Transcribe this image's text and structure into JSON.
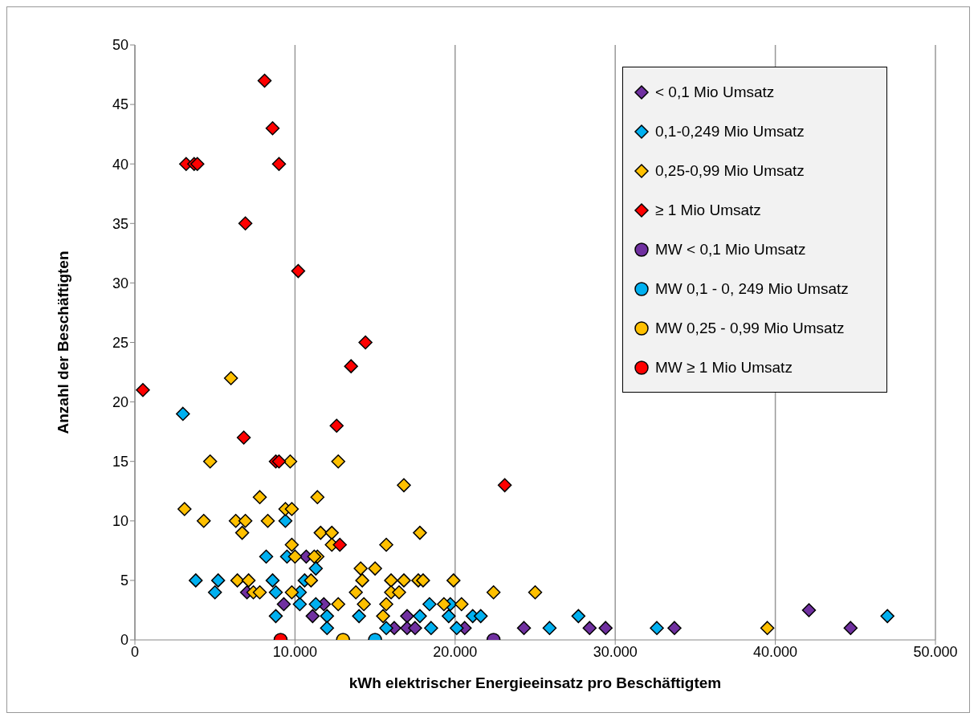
{
  "chart_data": {
    "type": "scatter",
    "xlabel": "kWh elektrischer Energieeinsatz pro Beschäftigtem",
    "ylabel": "Anzahl der Beschäftigten",
    "xlim": [
      0,
      50000
    ],
    "xticks": [
      {
        "value": 0,
        "label": "0"
      },
      {
        "value": 10000,
        "label": "10.000"
      },
      {
        "value": 20000,
        "label": "20.000"
      },
      {
        "value": 30000,
        "label": "30.000"
      },
      {
        "value": 40000,
        "label": "40.000"
      },
      {
        "value": 50000,
        "label": "50.000"
      }
    ],
    "ylim": [
      0,
      50
    ],
    "yticks": [
      0,
      5,
      10,
      15,
      20,
      25,
      30,
      35,
      40,
      45,
      50
    ],
    "grid": "x",
    "legend": "top right",
    "series": [
      {
        "name": "< 0,1 Mio Umsatz",
        "color": "#7030a0",
        "marker": "diamond",
        "x": [
          7000,
          9300,
          10700,
          11100,
          11800,
          16200,
          17000,
          17000,
          17500,
          20600,
          24300,
          28400,
          29400,
          33700,
          42100,
          44700
        ],
        "values": [
          4,
          3,
          7,
          2,
          3,
          1,
          2,
          1,
          1,
          1,
          1,
          1,
          1,
          1,
          2.5,
          1
        ]
      },
      {
        "name": "0,1-0,249 Mio Umsatz",
        "color": "#00b0f0",
        "marker": "diamond",
        "x": [
          3000,
          3800,
          5200,
          5000,
          8200,
          9400,
          8600,
          8800,
          8800,
          9500,
          10300,
          10300,
          10600,
          11300,
          11300,
          12000,
          12000,
          14000,
          15700,
          17800,
          18400,
          18500,
          19600,
          19700,
          20100,
          21100,
          21600,
          25900,
          27700,
          32600,
          47000
        ],
        "values": [
          19,
          5,
          5,
          4,
          7,
          10,
          5,
          4,
          2,
          7,
          3,
          4,
          5,
          6,
          3,
          2,
          1,
          2,
          1,
          2,
          3,
          1,
          2,
          3,
          1,
          2,
          2,
          1,
          2,
          1,
          2
        ]
      },
      {
        "name": "0,25-0,99 Mio Umsatz",
        "color": "#ffc000",
        "marker": "diamond",
        "x": [
          6000,
          4700,
          9700,
          12700,
          7800,
          11400,
          3100,
          9400,
          9800,
          4300,
          6300,
          6900,
          8300,
          6700,
          11600,
          12300,
          12300,
          9800,
          10000,
          11400,
          11200,
          6400,
          7100,
          11000,
          7400,
          7800,
          9800,
          12700,
          14100,
          14200,
          13800,
          14300,
          16800,
          17800,
          15700,
          15000,
          16000,
          16800,
          17700,
          18000,
          19900,
          16000,
          16500,
          22400,
          25000,
          15700,
          19300,
          20400,
          15500,
          39500
        ],
        "values": [
          22,
          15,
          15,
          15,
          12,
          12,
          11,
          11,
          11,
          10,
          10,
          10,
          10,
          9,
          9,
          9,
          8,
          8,
          7,
          7,
          7,
          5,
          5,
          5,
          4,
          4,
          4,
          3,
          6,
          5,
          4,
          3,
          13,
          9,
          8,
          6,
          5,
          5,
          5,
          5,
          5,
          4,
          4,
          4,
          4,
          3,
          3,
          3,
          2,
          1
        ]
      },
      {
        "name": "≥ 1 Mio Umsatz",
        "color": "#ff0000",
        "marker": "diamond",
        "x": [
          500,
          3200,
          3700,
          3900,
          8100,
          8600,
          9000,
          6900,
          10200,
          14400,
          13500,
          12600,
          6800,
          8800,
          9000,
          12800,
          23100
        ],
        "values": [
          21,
          40,
          40,
          40,
          47,
          43,
          40,
          35,
          31,
          25,
          23,
          18,
          17,
          15,
          15,
          8,
          13
        ]
      },
      {
        "name": "MW < 0,1 Mio Umsatz",
        "color": "#7030a0",
        "marker": "circle",
        "x": [
          22400
        ],
        "values": [
          0
        ]
      },
      {
        "name": "MW 0,1 - 0, 249 Mio Umsatz",
        "color": "#00b0f0",
        "marker": "circle",
        "x": [
          15000
        ],
        "values": [
          0
        ]
      },
      {
        "name": "MW 0,25 - 0,99 Mio Umsatz",
        "color": "#ffc000",
        "marker": "circle",
        "x": [
          13000
        ],
        "values": [
          0
        ]
      },
      {
        "name": "MW ≥ 1 Mio Umsatz",
        "color": "#ff0000",
        "marker": "circle",
        "x": [
          9100
        ],
        "values": [
          0
        ]
      }
    ]
  }
}
